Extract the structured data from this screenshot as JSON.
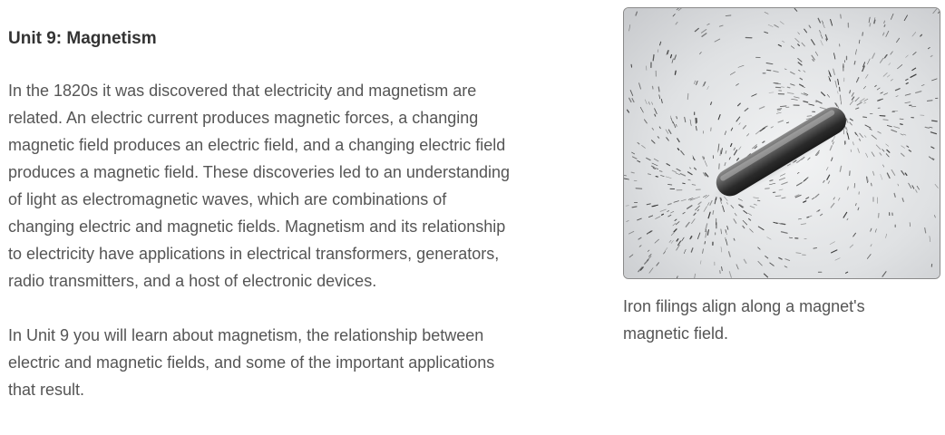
{
  "unit": {
    "title": "Unit 9: Magnetism",
    "paragraph_1": "In the 1820s it was discovered that electricity and magnetism are related. An electric current produces magnetic forces, a changing magnetic field produces an electric field, and a changing electric field produces a magnetic field. These discoveries led to an understanding of light as electromagnetic waves, which are combinations of changing electric and magnetic fields. Magnetism and its relationship to electricity have applications in electrical transformers, generators, radio transmitters, and a host of electronic devices.",
    "paragraph_2": "In Unit 9 you will learn about magnetism, the relationship between electric and magnetic fields, and some of the important applications that result."
  },
  "figure": {
    "caption": "Iron filings align along a magnet's magnetic field."
  }
}
